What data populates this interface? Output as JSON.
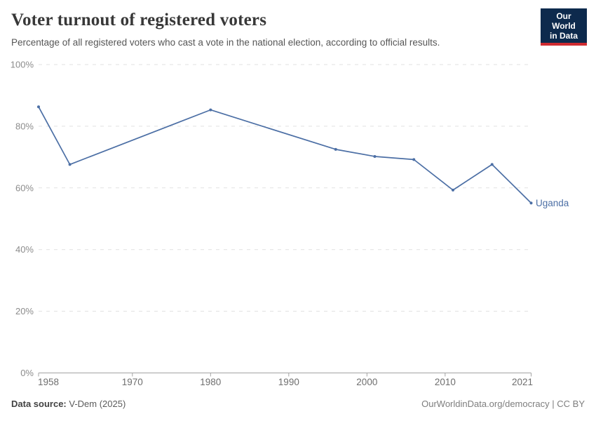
{
  "header": {
    "title": "Voter turnout of registered voters",
    "subtitle": "Percentage of all registered voters who cast a vote in the national election, according to official results.",
    "logo": {
      "line1": "Our World",
      "line2": "in Data",
      "bg_color": "#0d2a4d",
      "accent_color": "#cf2b31"
    }
  },
  "chart_data": {
    "type": "line",
    "title": "Voter turnout of registered voters",
    "xlabel": "",
    "ylabel": "",
    "xlim": [
      1958,
      2021
    ],
    "ylim": [
      0,
      100
    ],
    "grid": "horizontal-dashed",
    "legend_position": "end-of-line-label",
    "x": [
      1958,
      1962,
      1980,
      1996,
      2001,
      2006,
      2011,
      2016,
      2021
    ],
    "series": [
      {
        "name": "Uganda",
        "color": "#4c6fa5",
        "values": [
          86.3,
          67.6,
          85.3,
          72.5,
          70.2,
          69.2,
          59.3,
          67.6,
          55.1
        ]
      }
    ],
    "xticks": [
      {
        "value": 1958,
        "label": "1958"
      },
      {
        "value": 1970,
        "label": "1970"
      },
      {
        "value": 1980,
        "label": "1980"
      },
      {
        "value": 1990,
        "label": "1990"
      },
      {
        "value": 2000,
        "label": "2000"
      },
      {
        "value": 2010,
        "label": "2010"
      },
      {
        "value": 2021,
        "label": "2021"
      }
    ],
    "yticks": [
      {
        "value": 0,
        "label": "0%"
      },
      {
        "value": 20,
        "label": "20%"
      },
      {
        "value": 40,
        "label": "40%"
      },
      {
        "value": 60,
        "label": "60%"
      },
      {
        "value": 80,
        "label": "80%"
      },
      {
        "value": 100,
        "label": "100%"
      }
    ],
    "colors": {
      "gridline": "#e1e1e1",
      "axis_line": "#a3a3a3",
      "ytick_label": "#8c8c8c",
      "xtick_label": "#6e6e6e"
    }
  },
  "footer": {
    "source_label": "Data source:",
    "source_value": " V-Dem (2025)",
    "credit": "OurWorldinData.org/democracy | CC BY"
  }
}
